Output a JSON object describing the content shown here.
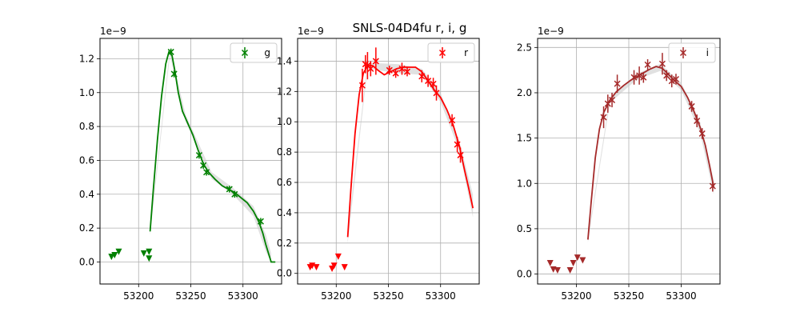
{
  "chart_data": {
    "title": "SNLS-04D4fu  r, i, g",
    "panels": [
      {
        "band": "g",
        "type": "scatter",
        "legend": "g",
        "color": "#008000",
        "legend_position": "top-right",
        "scale_label": "1e−9",
        "grid": true,
        "xlim": [
          53163,
          53337
        ],
        "ylim": [
          -0.13,
          1.32
        ],
        "xticks": [
          53200,
          53250,
          53300
        ],
        "yticks": [
          0.0,
          0.2,
          0.4,
          0.6,
          0.8,
          1.0,
          1.2
        ],
        "ytick_labels": [
          "0.0",
          "0.2",
          "0.4",
          "0.6",
          "0.8",
          "1.0",
          "1.2"
        ],
        "detections": [
          {
            "x": 53231,
            "y": 1.24,
            "err": 0.02
          },
          {
            "x": 53234,
            "y": 1.11,
            "err": 0.02
          },
          {
            "x": 53258,
            "y": 0.63,
            "err": 0.02
          },
          {
            "x": 53262,
            "y": 0.57,
            "err": 0.02
          },
          {
            "x": 53265,
            "y": 0.53,
            "err": 0.02
          },
          {
            "x": 53287,
            "y": 0.43,
            "err": 0.02
          },
          {
            "x": 53292,
            "y": 0.4,
            "err": 0.02
          },
          {
            "x": 53317,
            "y": 0.24,
            "err": 0.02
          }
        ],
        "upper_limits": [
          {
            "x": 53174,
            "y": 0.03
          },
          {
            "x": 53177,
            "y": 0.04
          },
          {
            "x": 53181,
            "y": 0.06
          },
          {
            "x": 53205,
            "y": 0.05
          },
          {
            "x": 53210,
            "y": 0.06
          },
          {
            "x": 53210,
            "y": 0.02
          }
        ],
        "model": [
          [
            53211,
            0.18
          ],
          [
            53214,
            0.42
          ],
          [
            53218,
            0.72
          ],
          [
            53222,
            0.98
          ],
          [
            53226,
            1.17
          ],
          [
            53229,
            1.24
          ],
          [
            53232,
            1.22
          ],
          [
            53235,
            1.12
          ],
          [
            53238,
            1.0
          ],
          [
            53242,
            0.89
          ],
          [
            53247,
            0.82
          ],
          [
            53252,
            0.75
          ],
          [
            53257,
            0.66
          ],
          [
            53262,
            0.58
          ],
          [
            53267,
            0.53
          ],
          [
            53273,
            0.49
          ],
          [
            53280,
            0.45
          ],
          [
            53286,
            0.43
          ],
          [
            53292,
            0.41
          ],
          [
            53298,
            0.38
          ],
          [
            53304,
            0.35
          ],
          [
            53310,
            0.3
          ],
          [
            53315,
            0.24
          ],
          [
            53319,
            0.17
          ],
          [
            53322,
            0.1
          ],
          [
            53325,
            0.04
          ],
          [
            53327,
            0.0
          ],
          [
            53331,
            0.0
          ]
        ],
        "band_upper": [
          [
            53211,
            0.2
          ],
          [
            53230,
            1.26
          ],
          [
            53245,
            0.87
          ],
          [
            53270,
            0.53
          ],
          [
            53290,
            0.44
          ],
          [
            53310,
            0.33
          ],
          [
            53322,
            0.16
          ],
          [
            53327,
            0.05
          ]
        ],
        "band_lower": [
          [
            53211,
            0.16
          ],
          [
            53230,
            1.22
          ],
          [
            53245,
            0.83
          ],
          [
            53270,
            0.49
          ],
          [
            53290,
            0.4
          ],
          [
            53310,
            0.27
          ],
          [
            53322,
            0.06
          ],
          [
            53327,
            0.0
          ]
        ]
      },
      {
        "band": "r",
        "type": "scatter",
        "legend": "r",
        "color": "#ff0000",
        "legend_position": "top-right",
        "scale_label": "1e−9",
        "grid": true,
        "xlim": [
          53163,
          53337
        ],
        "ylim": [
          -0.07,
          1.55
        ],
        "xticks": [
          53200,
          53250,
          53300
        ],
        "yticks": [
          0.0,
          0.2,
          0.4,
          0.6,
          0.8,
          1.0,
          1.2,
          1.4
        ],
        "ytick_labels": [
          "0.0",
          "0.2",
          "0.4",
          "0.6",
          "0.8",
          "1.0",
          "1.2",
          "1.4"
        ],
        "detections": [
          {
            "x": 53225,
            "y": 1.24,
            "err": 0.11
          },
          {
            "x": 53228,
            "y": 1.38,
            "err": 0.06
          },
          {
            "x": 53230,
            "y": 1.37,
            "err": 0.09
          },
          {
            "x": 53233,
            "y": 1.35,
            "err": 0.05
          },
          {
            "x": 53238,
            "y": 1.4,
            "err": 0.09
          },
          {
            "x": 53251,
            "y": 1.34,
            "err": 0.03
          },
          {
            "x": 53257,
            "y": 1.32,
            "err": 0.03
          },
          {
            "x": 53263,
            "y": 1.35,
            "err": 0.04
          },
          {
            "x": 53268,
            "y": 1.33,
            "err": 0.03
          },
          {
            "x": 53282,
            "y": 1.3,
            "err": 0.04
          },
          {
            "x": 53288,
            "y": 1.27,
            "err": 0.04
          },
          {
            "x": 53293,
            "y": 1.25,
            "err": 0.04
          },
          {
            "x": 53296,
            "y": 1.19,
            "err": 0.05
          },
          {
            "x": 53311,
            "y": 1.01,
            "err": 0.04
          },
          {
            "x": 53316,
            "y": 0.85,
            "err": 0.05
          },
          {
            "x": 53319,
            "y": 0.78,
            "err": 0.05
          }
        ],
        "upper_limits": [
          {
            "x": 53175,
            "y": 0.04
          },
          {
            "x": 53177,
            "y": 0.05
          },
          {
            "x": 53181,
            "y": 0.04
          },
          {
            "x": 53196,
            "y": 0.03
          },
          {
            "x": 53198,
            "y": 0.05
          },
          {
            "x": 53202,
            "y": 0.11
          },
          {
            "x": 53208,
            "y": 0.04
          }
        ],
        "model": [
          [
            53211,
            0.24
          ],
          [
            53214,
            0.55
          ],
          [
            53218,
            0.92
          ],
          [
            53222,
            1.18
          ],
          [
            53226,
            1.32
          ],
          [
            53230,
            1.37
          ],
          [
            53235,
            1.37
          ],
          [
            53240,
            1.34
          ],
          [
            53246,
            1.31
          ],
          [
            53252,
            1.33
          ],
          [
            53258,
            1.35
          ],
          [
            53264,
            1.36
          ],
          [
            53270,
            1.36
          ],
          [
            53276,
            1.36
          ],
          [
            53282,
            1.33
          ],
          [
            53288,
            1.27
          ],
          [
            53294,
            1.21
          ],
          [
            53300,
            1.16
          ],
          [
            53306,
            1.08
          ],
          [
            53312,
            0.98
          ],
          [
            53318,
            0.84
          ],
          [
            53323,
            0.68
          ],
          [
            53327,
            0.56
          ],
          [
            53331,
            0.43
          ]
        ],
        "band_upper": [
          [
            53211,
            0.28
          ],
          [
            53230,
            1.39
          ],
          [
            53260,
            1.38
          ],
          [
            53282,
            1.35
          ],
          [
            53300,
            1.19
          ],
          [
            53318,
            0.87
          ],
          [
            53331,
            0.52
          ]
        ],
        "band_lower": [
          [
            53211,
            0.2
          ],
          [
            53230,
            1.35
          ],
          [
            53260,
            1.32
          ],
          [
            53282,
            1.31
          ],
          [
            53300,
            1.13
          ],
          [
            53318,
            0.81
          ],
          [
            53331,
            0.37
          ]
        ]
      },
      {
        "band": "i",
        "type": "scatter",
        "legend": "i",
        "color": "#a52a2a",
        "legend_position": "top-right",
        "scale_label": "1e−9",
        "grid": true,
        "xlim": [
          53163,
          53337
        ],
        "ylim": [
          -0.11,
          2.6
        ],
        "xticks": [
          53200,
          53250,
          53300
        ],
        "yticks": [
          0.0,
          0.5,
          1.0,
          1.5,
          2.0,
          2.5
        ],
        "ytick_labels": [
          "0.0",
          "0.5",
          "1.0",
          "1.5",
          "2.0",
          "2.5"
        ],
        "detections": [
          {
            "x": 53226,
            "y": 1.73,
            "err": 0.12
          },
          {
            "x": 53230,
            "y": 1.88,
            "err": 0.1
          },
          {
            "x": 53234,
            "y": 1.92,
            "err": 0.08
          },
          {
            "x": 53239,
            "y": 2.1,
            "err": 0.1
          },
          {
            "x": 53255,
            "y": 2.17,
            "err": 0.08
          },
          {
            "x": 53260,
            "y": 2.19,
            "err": 0.1
          },
          {
            "x": 53264,
            "y": 2.17,
            "err": 0.06
          },
          {
            "x": 53268,
            "y": 2.31,
            "err": 0.06
          },
          {
            "x": 53282,
            "y": 2.32,
            "err": 0.12
          },
          {
            "x": 53286,
            "y": 2.19,
            "err": 0.06
          },
          {
            "x": 53291,
            "y": 2.13,
            "err": 0.07
          },
          {
            "x": 53295,
            "y": 2.15,
            "err": 0.06
          },
          {
            "x": 53310,
            "y": 1.85,
            "err": 0.06
          },
          {
            "x": 53315,
            "y": 1.69,
            "err": 0.07
          },
          {
            "x": 53320,
            "y": 1.55,
            "err": 0.06
          },
          {
            "x": 53330,
            "y": 0.97,
            "err": 0.06
          }
        ],
        "upper_limits": [
          {
            "x": 53175,
            "y": 0.12
          },
          {
            "x": 53178,
            "y": 0.05
          },
          {
            "x": 53182,
            "y": 0.04
          },
          {
            "x": 53194,
            "y": 0.04
          },
          {
            "x": 53197,
            "y": 0.12
          },
          {
            "x": 53201,
            "y": 0.18
          },
          {
            "x": 53206,
            "y": 0.15
          }
        ],
        "model": [
          [
            53211,
            0.38
          ],
          [
            53214,
            0.78
          ],
          [
            53218,
            1.28
          ],
          [
            53222,
            1.6
          ],
          [
            53226,
            1.78
          ],
          [
            53232,
            1.92
          ],
          [
            53238,
            2.01
          ],
          [
            53245,
            2.08
          ],
          [
            53252,
            2.14
          ],
          [
            53258,
            2.18
          ],
          [
            53264,
            2.22
          ],
          [
            53270,
            2.26
          ],
          [
            53276,
            2.29
          ],
          [
            53282,
            2.27
          ],
          [
            53288,
            2.2
          ],
          [
            53294,
            2.13
          ],
          [
            53300,
            2.07
          ],
          [
            53306,
            1.95
          ],
          [
            53312,
            1.8
          ],
          [
            53318,
            1.62
          ],
          [
            53323,
            1.42
          ],
          [
            53327,
            1.2
          ],
          [
            53331,
            0.96
          ]
        ],
        "band_upper": [
          [
            53211,
            0.41
          ],
          [
            53232,
            1.95
          ],
          [
            53258,
            2.21
          ],
          [
            53280,
            2.32
          ],
          [
            53300,
            2.11
          ],
          [
            53318,
            1.68
          ],
          [
            53331,
            1.04
          ]
        ],
        "band_lower": [
          [
            53211,
            0.35
          ],
          [
            53232,
            1.89
          ],
          [
            53258,
            2.15
          ],
          [
            53280,
            2.24
          ],
          [
            53300,
            2.03
          ],
          [
            53318,
            1.56
          ],
          [
            53331,
            0.88
          ]
        ]
      }
    ]
  }
}
